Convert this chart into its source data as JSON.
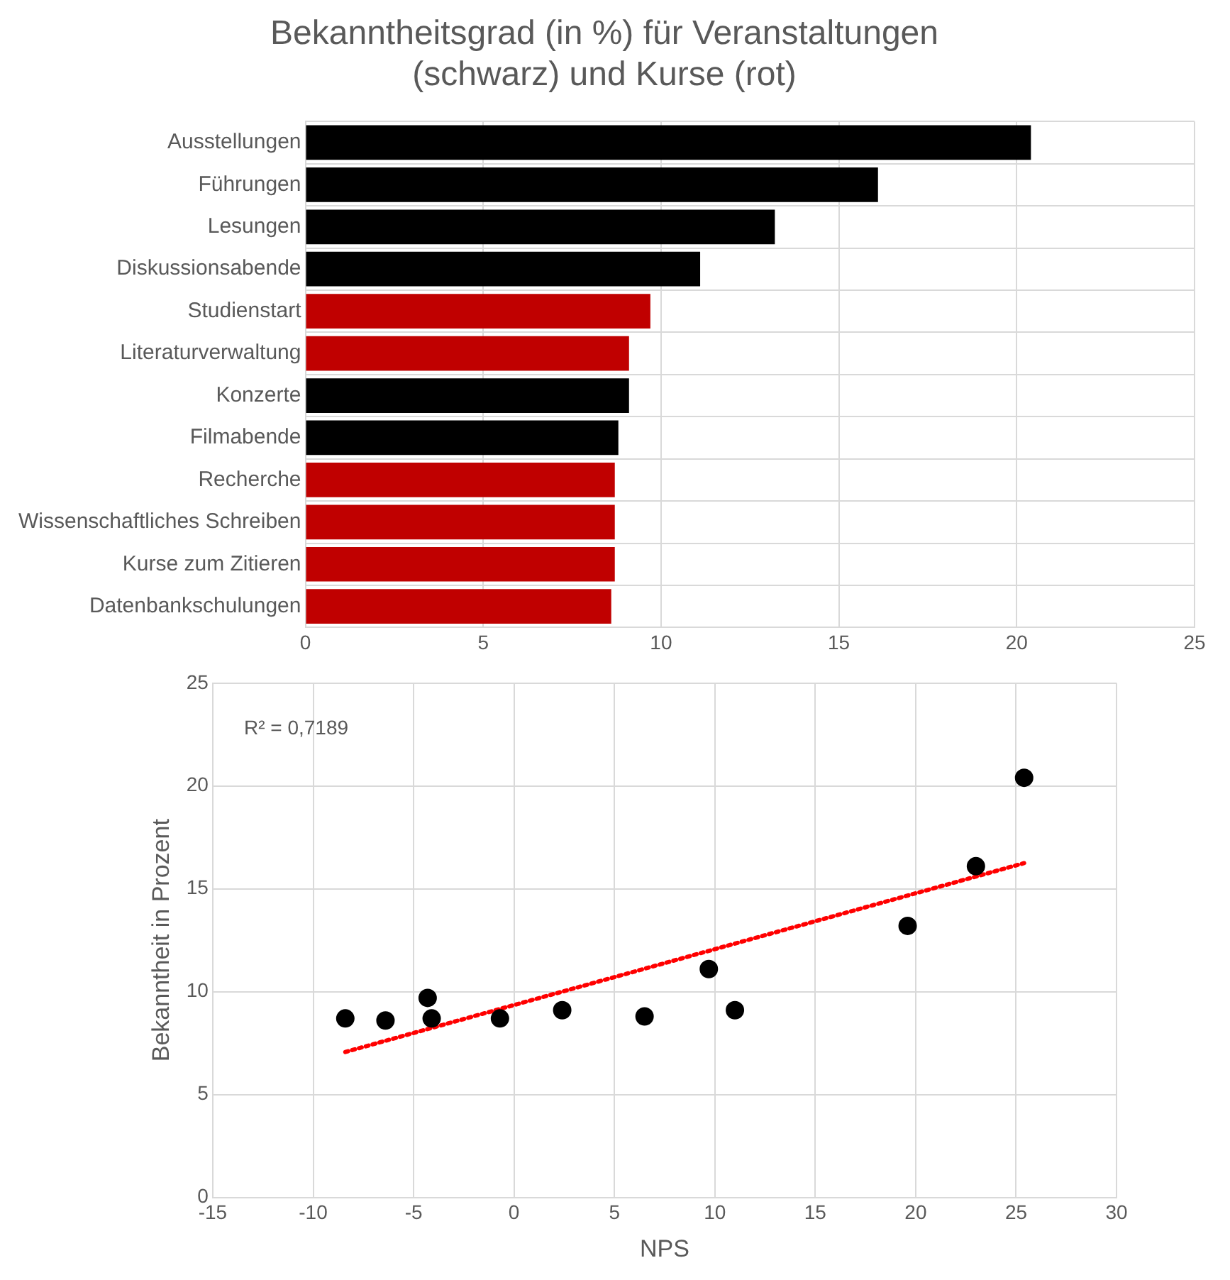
{
  "chart_data": [
    {
      "type": "bar",
      "orientation": "horizontal",
      "title": "Bekanntheitsgrad (in %) für Veranstaltungen\n(schwarz) und Kurse (rot)",
      "categories": [
        "Ausstellungen",
        "Führungen",
        "Lesungen",
        "Diskussionsabende",
        "Studienstart",
        "Literaturverwaltung",
        "Konzerte",
        "Filmabende",
        "Recherche",
        "Wissenschaftliches Schreiben",
        "Kurse zum Zitieren",
        "Datenbankschulungen"
      ],
      "values": [
        20.4,
        16.1,
        13.2,
        11.1,
        9.7,
        9.1,
        9.1,
        8.8,
        8.7,
        8.7,
        8.7,
        8.6
      ],
      "colors": [
        "#000000",
        "#000000",
        "#000000",
        "#000000",
        "#c00000",
        "#c00000",
        "#000000",
        "#000000",
        "#c00000",
        "#c00000",
        "#c00000",
        "#c00000"
      ],
      "xlim": [
        0,
        25
      ],
      "xticks": [
        0,
        5,
        10,
        15,
        20,
        25
      ],
      "grid": true,
      "legend": false
    },
    {
      "type": "scatter",
      "xlabel": "NPS",
      "ylabel": "Bekanntheit in Prozent",
      "annotations": [
        "R² = 0,7189"
      ],
      "series": [
        {
          "type": "scatter",
          "color": "#000000",
          "marker": "circle",
          "x": [
            -8.4,
            -6.4,
            -4.3,
            -4.1,
            -0.7,
            2.4,
            6.5,
            9.7,
            11.0,
            19.6,
            23.0,
            25.4
          ],
          "values": [
            8.7,
            8.6,
            9.7,
            8.7,
            8.7,
            9.1,
            8.8,
            11.1,
            9.1,
            13.2,
            16.1,
            20.4
          ]
        },
        {
          "type": "line",
          "color": "#ff0000",
          "marker": "none",
          "line_style": "dotted",
          "x": [
            -8.4,
            25.4
          ],
          "values": [
            7.07,
            16.25
          ]
        }
      ],
      "xlim": [
        -15,
        30
      ],
      "xticks": [
        -15,
        -10,
        -5,
        0,
        5,
        10,
        15,
        20,
        25,
        30
      ],
      "ylim": [
        0,
        25
      ],
      "yticks": [
        0,
        5,
        10,
        15,
        20,
        25
      ],
      "grid": true,
      "legend": false
    }
  ]
}
